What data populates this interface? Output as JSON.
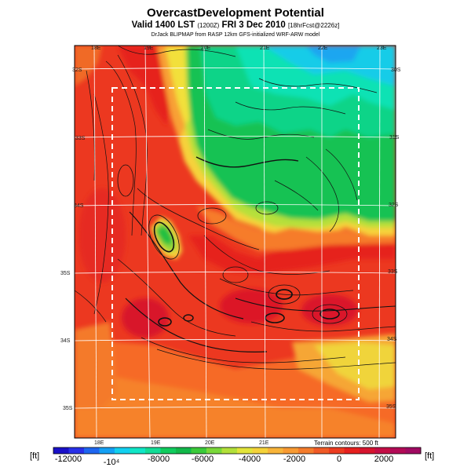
{
  "header": {
    "title": "OvercastDevelopment Potential",
    "valid": "Valid 1400 LST",
    "valid_small": "(1200Z)",
    "date": "FRI 3 Dec 2010",
    "forecast_small": "[18hrFcst@2226z]",
    "credit": "DrJack BLIPMAP from RASP 12km GFS-initialized WRF-ARW model"
  },
  "map": {
    "lon_labels_top": [
      "18E",
      "19E",
      "20E",
      "21E",
      "22E",
      "23E"
    ],
    "lon_labels_bottom": [
      "18E",
      "19E",
      "20E",
      "21E"
    ],
    "lat_labels_left": [
      "32S",
      "33S",
      "34S",
      "35S",
      "34S",
      "35S"
    ],
    "lat_labels_right": [
      "30S",
      "31S",
      "32S",
      "33S",
      "34S",
      "35S"
    ],
    "terrain_note": "Terrain contours: 500 ft"
  },
  "colorbar": {
    "unit_left": "[ft]",
    "unit_right": "[ft]",
    "tick_labels": [
      "-12000",
      "-10⁴",
      "-8000",
      "-6000",
      "-4000",
      "-2000",
      "0",
      "2000"
    ],
    "colors": [
      "#1a10c8",
      "#2830e8",
      "#1e66f0",
      "#14a0f4",
      "#12d0f0",
      "#10e6c6",
      "#12dc96",
      "#10cc5e",
      "#12b84a",
      "#3aca3a",
      "#7ad83a",
      "#b2e03a",
      "#e2e43a",
      "#f4d23a",
      "#f8b43a",
      "#f89a32",
      "#f47c2c",
      "#f05a26",
      "#ec3c20",
      "#e6201e",
      "#d6142e",
      "#c40e46",
      "#b20a56",
      "#a00a62"
    ],
    "zero_index": 19
  }
}
